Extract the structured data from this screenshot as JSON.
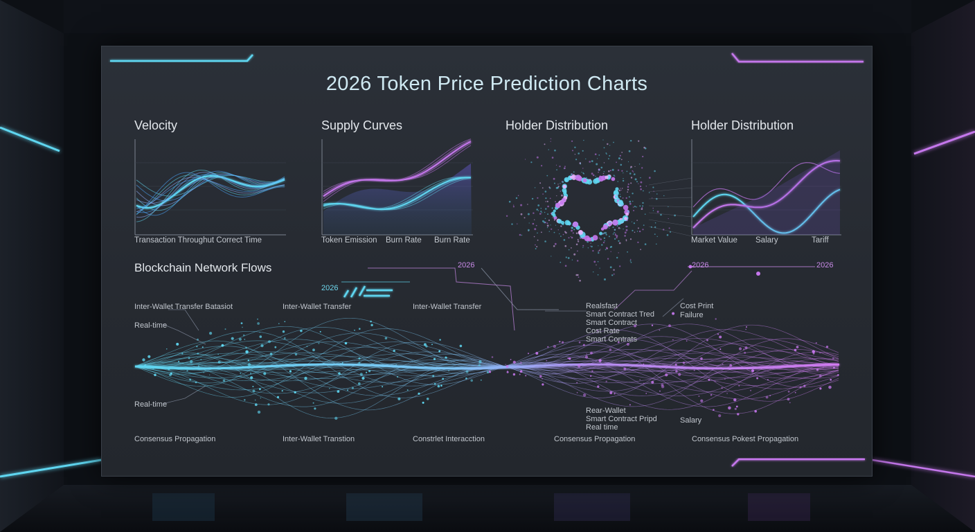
{
  "dashboard": {
    "title": "2026 Token Price Prediction Charts",
    "panels": [
      {
        "heading": "Velocity",
        "x_labels": [
          "Transaction Throughut Correct Time"
        ]
      },
      {
        "heading": "Supply Curves",
        "x_labels": [
          "Token Emission",
          "Burn Rate",
          "Burn Rate"
        ]
      },
      {
        "heading": "Holder Distribution",
        "x_labels": []
      },
      {
        "heading": "Holder Distribution",
        "x_labels": [
          "Market Value",
          "Salary",
          "Tariff"
        ]
      }
    ],
    "flows": {
      "heading": "Blockchain Network Flows",
      "year_labels": [
        "2026",
        "2026",
        "2026",
        "2026"
      ],
      "top_labels": [
        "Inter-Wallet Transfer Batasiot",
        "Inter-Wallet Transfer",
        "Inter-Wallet Transfer",
        "Real-time",
        "Real-time"
      ],
      "middle_labels": [
        "Realsfast",
        "Smart Contract Tred",
        "Smart Contract",
        "Cost Rate",
        "Smart Contrats",
        "Cost Print",
        "Failure"
      ],
      "lower_labels": [
        "Rear-Wallet",
        "Smart Contract Pripd",
        "Real time",
        "Salary"
      ],
      "bottom_labels": [
        "Consensus Propagation",
        "Inter-Wallet Transtion",
        "Constrlet Interacction",
        "Consensus Propagation",
        "Consensus Pokest Propagation"
      ]
    },
    "colors": {
      "cyan": "#5fd6f0",
      "violet": "#c577ec",
      "blue": "#4aa8ff"
    }
  }
}
